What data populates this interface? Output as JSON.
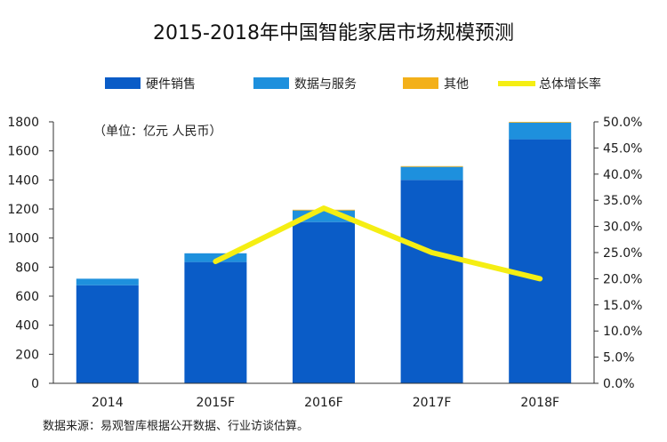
{
  "chart_data": {
    "type": "bar",
    "title": "2015-2018年中国智能家居市场规模预测",
    "unit_note": "（单位：亿元 人民币）",
    "source": "数据来源：易观智库根据公开数据、行业访谈估算。",
    "categories": [
      "2014",
      "2015F",
      "2016F",
      "2017F",
      "2018F"
    ],
    "stacked": true,
    "series": [
      {
        "name": "硬件销售",
        "color": "#0a5cc7",
        "axis": "left",
        "values": [
          675,
          835,
          1110,
          1400,
          1680
        ]
      },
      {
        "name": "数据与服务",
        "color": "#1e90dd",
        "axis": "left",
        "values": [
          45,
          60,
          80,
          90,
          115
        ]
      },
      {
        "name": "其他",
        "color": "#f3b01a",
        "axis": "left",
        "values": [
          0,
          0,
          5,
          5,
          5
        ]
      },
      {
        "name": "总体增长率",
        "color": "#f5ee13",
        "axis": "right",
        "type": "line",
        "values": [
          null,
          23.3,
          33.5,
          25.0,
          20.0
        ]
      }
    ],
    "y_left": {
      "min": 0,
      "max": 1800,
      "ticks": [
        "0",
        "200",
        "400",
        "600",
        "800",
        "1000",
        "1200",
        "1400",
        "1600",
        "1800"
      ]
    },
    "y_right": {
      "min": 0,
      "max": 50,
      "ticks": [
        "0.0%",
        "5.0%",
        "10.0%",
        "15.0%",
        "20.0%",
        "25.0%",
        "30.0%",
        "35.0%",
        "40.0%",
        "45.0%",
        "50.0%"
      ]
    },
    "grid": false,
    "legend_position": "top"
  }
}
